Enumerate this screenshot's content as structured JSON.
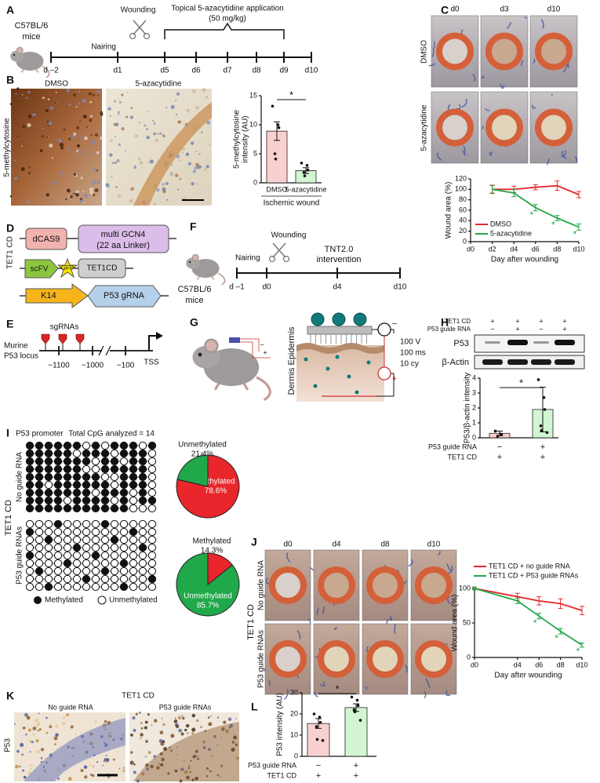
{
  "panel_labels": [
    "A",
    "B",
    "C",
    "D",
    "E",
    "F",
    "G",
    "H",
    "I",
    "J",
    "K",
    "L"
  ],
  "panel_a": {
    "strain": "C57BL/6",
    "strain2": "mice",
    "nairing": "Nairing",
    "wounding": "Wounding",
    "treatment": "Topical 5-azacytidine application",
    "dose": "(50 mg/kg)",
    "days": [
      "d –2",
      "d1",
      "d5",
      "d6",
      "d7",
      "d8",
      "d9",
      "d10"
    ]
  },
  "panel_b": {
    "columns": [
      "DMSO",
      "5-azacytidine"
    ],
    "stain": "5-methylcytosine"
  },
  "panel_c": {
    "columns": [
      "d0",
      "d3",
      "d10"
    ],
    "rows": [
      "DMSO",
      "5-azacytidine"
    ]
  },
  "panel_d": {
    "group": "TET1 CD",
    "dcas9": "dCAS9",
    "gcn4": "multi GCN4",
    "linker": "(22 aa Linker)",
    "scfv": "scFV",
    "gfp": "GFP",
    "tet1cd": "TET1CD",
    "k14": "K14",
    "grna": "P53 gRNA"
  },
  "panel_e": {
    "sgrnas": "sgRNAs",
    "locus1": "Murine",
    "locus2": "P53 locus",
    "positions": [
      "−1100",
      "−1000",
      "−100"
    ],
    "tss": "TSS"
  },
  "panel_f": {
    "strain": "C57BL/6",
    "strain2": "mice",
    "nairing": "Nairing",
    "wounding": "Wounding",
    "intervention1": "TNT2.0",
    "intervention2": "intervention",
    "days": [
      "d –1",
      "d0",
      "d4",
      "d10"
    ]
  },
  "panel_g": {
    "layers": "Dermis Epidermis",
    "voltage": "100 V",
    "duration": "100 ms",
    "cycles": "10 cy",
    "circuit_signs": [
      "−",
      "+"
    ],
    "electrode_signs": [
      "−",
      "+"
    ]
  },
  "panel_h": {
    "conditions": [
      {
        "name": "TET1 CD",
        "values": [
          "+",
          "+",
          "+",
          "+"
        ]
      },
      {
        "name": "P53 guide RNA",
        "values": [
          "−",
          "+",
          "−",
          "+"
        ]
      }
    ],
    "bands": [
      "P53",
      "β-Actin"
    ]
  },
  "panel_i": {
    "promoter": "P53 promoter",
    "total": "Total CpG analyzed = 14",
    "group": "TET1 CD",
    "rows": [
      "No guide RNA",
      "P53 guide RNAs"
    ],
    "legend": [
      "Methylated",
      "Unmethylated"
    ],
    "methylation": {
      "top": [
        [
          1,
          1,
          1,
          1,
          1,
          1,
          0,
          1,
          0,
          1,
          1,
          1,
          0,
          1
        ],
        [
          1,
          1,
          1,
          1,
          1,
          0,
          1,
          1,
          1,
          0,
          1,
          1,
          1,
          0
        ],
        [
          1,
          1,
          1,
          1,
          1,
          1,
          1,
          0,
          1,
          1,
          0,
          1,
          1,
          0
        ],
        [
          1,
          1,
          1,
          1,
          1,
          1,
          0,
          0,
          1,
          1,
          1,
          1,
          1,
          0
        ],
        [
          1,
          1,
          1,
          1,
          1,
          1,
          1,
          1,
          0,
          0,
          1,
          1,
          1,
          0
        ],
        [
          1,
          1,
          0,
          1,
          1,
          1,
          1,
          1,
          1,
          0,
          1,
          1,
          1,
          0
        ],
        [
          1,
          1,
          1,
          1,
          1,
          1,
          1,
          0,
          1,
          1,
          1,
          0,
          1,
          0
        ],
        [
          1,
          1,
          1,
          1,
          0,
          1,
          1,
          1,
          1,
          0,
          1,
          0,
          1,
          1
        ],
        [
          1,
          1,
          1,
          1,
          1,
          1,
          1,
          1,
          1,
          1,
          1,
          0,
          0,
          0
        ]
      ],
      "bottom": [
        [
          0,
          0,
          0,
          1,
          0,
          0,
          0,
          0,
          1,
          0,
          0,
          0,
          0,
          0
        ],
        [
          1,
          0,
          0,
          0,
          0,
          0,
          0,
          0,
          0,
          0,
          0,
          1,
          0,
          0
        ],
        [
          0,
          0,
          1,
          0,
          0,
          0,
          0,
          0,
          0,
          1,
          0,
          0,
          0,
          0
        ],
        [
          0,
          0,
          0,
          0,
          0,
          1,
          0,
          0,
          0,
          0,
          0,
          0,
          1,
          0
        ],
        [
          1,
          0,
          0,
          0,
          0,
          0,
          0,
          1,
          0,
          0,
          0,
          0,
          0,
          0
        ],
        [
          0,
          0,
          0,
          0,
          1,
          0,
          0,
          0,
          0,
          0,
          1,
          0,
          0,
          0
        ],
        [
          0,
          1,
          0,
          0,
          0,
          0,
          0,
          0,
          1,
          0,
          0,
          0,
          0,
          0
        ],
        [
          0,
          0,
          0,
          0,
          0,
          0,
          1,
          0,
          0,
          0,
          0,
          0,
          0,
          1
        ],
        [
          0,
          0,
          1,
          0,
          0,
          0,
          0,
          0,
          0,
          0,
          1,
          0,
          0,
          0
        ]
      ]
    }
  },
  "panel_j": {
    "columns": [
      "d0",
      "d4",
      "d8",
      "d10"
    ],
    "group": "TET1 CD",
    "rows": [
      "No guide RNA",
      "P53 guide RNAs"
    ]
  },
  "panel_k": {
    "group": "TET1 CD",
    "columns": [
      "No guide RNA",
      "P53 guide RNAs"
    ],
    "stain": "P53"
  },
  "chart_data": [
    {
      "type": "bar",
      "categories": [
        "DMSO",
        "5-azacytidine"
      ],
      "values": [
        8.9,
        2.1
      ],
      "errors": [
        1.6,
        0.5
      ],
      "points": [
        [
          13.2,
          10,
          9.5,
          5,
          4.1
        ],
        [
          3.4,
          3,
          2.2,
          1.8,
          1.2
        ]
      ],
      "colors": [
        "#f9d0d0",
        "#d2f5d2"
      ],
      "ylim": [
        0,
        15
      ],
      "yticks": [
        0,
        5,
        10,
        15
      ],
      "ylabel": [
        "5-methylcytosine",
        "intensity (AU)"
      ],
      "xlabel": "Ischemic wound",
      "significance": "*"
    },
    {
      "type": "line",
      "x": [
        2,
        4,
        6,
        8,
        10
      ],
      "xlim": [
        0,
        10
      ],
      "xticks": [
        {
          "value": 0,
          "label": "d0"
        },
        {
          "value": 2,
          "label": "d2"
        },
        {
          "value": 4,
          "label": "d4"
        },
        {
          "value": 6,
          "label": "d6"
        },
        {
          "value": 8,
          "label": "d8"
        },
        {
          "value": 10,
          "label": "d10"
        }
      ],
      "ylim": [
        0,
        120
      ],
      "yticks": [
        0,
        20,
        40,
        60,
        80,
        100,
        120
      ],
      "ylabel": "Wound area (%)",
      "xlabel": "Day after wounding",
      "series": [
        {
          "name": "DMSO",
          "color": "#e8262b",
          "values": [
            100,
            100,
            104,
            107,
            90
          ],
          "errors": [
            8,
            6,
            5,
            9,
            6
          ]
        },
        {
          "name": "5-azacytidine",
          "color": "#21a84a",
          "values": [
            100,
            93,
            65,
            45,
            28
          ],
          "errors": [
            7,
            7,
            6,
            5,
            6
          ],
          "significance": [
            null,
            null,
            "*",
            "*",
            "*"
          ]
        }
      ]
    },
    {
      "type": "bar",
      "categories": [
        null,
        null
      ],
      "values": [
        0.3,
        1.9
      ],
      "errors": [
        0.15,
        1.5
      ],
      "points": [
        [
          0.45,
          0.25,
          0.2,
          0.1
        ],
        [
          3.9,
          2.7,
          1.9,
          0.8,
          0.5,
          0.35
        ]
      ],
      "colors": [
        "#f9d0d0",
        "#d2f5d2"
      ],
      "ylim": [
        0,
        4
      ],
      "yticks": [
        0,
        1,
        2,
        3,
        4
      ],
      "ylabel": "P53/β-actin intensity",
      "significance": "*",
      "conditions": [
        {
          "name": "P53 guide RNA",
          "values": [
            "−",
            "+"
          ]
        },
        {
          "name": "TET1 CD",
          "values": [
            "+",
            "+"
          ]
        }
      ]
    },
    {
      "type": "pie",
      "categories": [
        "Methylated",
        "Unmethylated"
      ],
      "values": [
        78.6,
        21.4
      ],
      "value_labels": [
        "78.6%",
        "21.4%"
      ],
      "colors": [
        "#e8262b",
        "#21a84a"
      ]
    },
    {
      "type": "pie",
      "categories": [
        "Methylated",
        "Unmethylated"
      ],
      "values": [
        14.3,
        85.7
      ],
      "value_labels": [
        "14.3%",
        "85.7%"
      ],
      "colors": [
        "#e8262b",
        "#21a84a"
      ]
    },
    {
      "type": "line",
      "x": [
        0,
        4,
        6,
        8,
        10
      ],
      "xlim": [
        0,
        10
      ],
      "xticks": [
        {
          "value": 0,
          "label": "d0"
        },
        {
          "value": 4,
          "label": "d4"
        },
        {
          "value": 6,
          "label": "d6"
        },
        {
          "value": 8,
          "label": "d8"
        },
        {
          "value": 10,
          "label": "d10"
        }
      ],
      "ylim": [
        0,
        100
      ],
      "yticks": [
        0,
        50,
        100
      ],
      "ylabel": "Wound area (%)",
      "xlabel": "Day after wounding",
      "series": [
        {
          "name": "TET1 CD + no guide RNA",
          "color": "#e8262b",
          "values": [
            100,
            88,
            82,
            78,
            68
          ],
          "errors": [
            2,
            5,
            6,
            7,
            6
          ]
        },
        {
          "name": "TET1 CD + P53 guide RNAs",
          "color": "#21a84a",
          "values": [
            100,
            82,
            60,
            38,
            18
          ],
          "errors": [
            2,
            4,
            4,
            4,
            3
          ],
          "significance": [
            null,
            null,
            "*",
            "*",
            "*"
          ]
        }
      ]
    },
    {
      "type": "bar",
      "categories": [
        null,
        null
      ],
      "values": [
        15.5,
        23
      ],
      "errors": [
        2.3,
        1.8
      ],
      "points": [
        [
          20,
          18.5,
          16,
          14,
          8,
          7.5
        ],
        [
          28,
          26.5,
          24,
          22,
          21,
          17
        ]
      ],
      "colors": [
        "#f9d0d0",
        "#d2f5d2"
      ],
      "ylim": [
        0,
        30
      ],
      "yticks": [
        0,
        10,
        20,
        30
      ],
      "ylabel": "P53 intensity (AU)",
      "significance": "*",
      "conditions": [
        {
          "name": "P53 guide RNA",
          "values": [
            "−",
            "+"
          ]
        },
        {
          "name": "TET1 CD",
          "values": [
            "+",
            "+"
          ]
        }
      ]
    }
  ]
}
